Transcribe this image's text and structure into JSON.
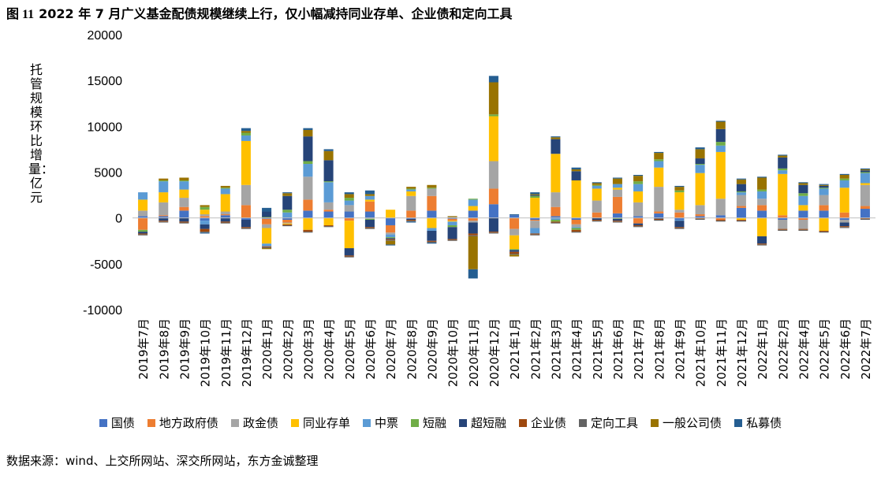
{
  "figure": {
    "title_num": "图 11",
    "title": "2022 年 7 月广义基金配债规模继续上行，仅小幅减持同业存单、企业债和定向工具",
    "source": "数据来源：wind、上交所网站、深交所网站，东方金诚整理"
  },
  "chart_data": {
    "type": "bar",
    "stacked": true,
    "ylabel": "托管规模环比增量：亿元",
    "xlabel": "",
    "ylim": [
      -10000,
      20000
    ],
    "yticks": [
      -10000,
      -5000,
      0,
      5000,
      10000,
      15000,
      20000
    ],
    "grid": false,
    "legend_position": "bottom",
    "categories": [
      "2019年7月",
      "2019年8月",
      "2019年9月",
      "2019年10月",
      "2019年11月",
      "2019年12月",
      "2020年1月",
      "2020年2月",
      "2020年3月",
      "2020年4月",
      "2020年5月",
      "2020年6月",
      "2020年7月",
      "2020年8月",
      "2020年9月",
      "2020年10月",
      "2020年11月",
      "2020年12月",
      "2021年1月",
      "2021年2月",
      "2021年3月",
      "2021年4月",
      "2021年5月",
      "2021年6月",
      "2021年7月",
      "2021年8月",
      "2021年9月",
      "2021年10月",
      "2021年11月",
      "2021年12月",
      "2022年1月",
      "2022年2月",
      "2022年4月",
      "2022年5月",
      "2022年6月",
      "2022年7月"
    ],
    "series": [
      {
        "name": "国债",
        "color": "#4472C4",
        "values": [
          200,
          200,
          800,
          -300,
          300,
          -200,
          -100,
          -200,
          800,
          700,
          700,
          700,
          -800,
          -100,
          800,
          -100,
          800,
          1500,
          300,
          -200,
          200,
          -200,
          0,
          500,
          200,
          500,
          -200,
          200,
          300,
          1100,
          800,
          -200,
          800,
          800,
          -200,
          1000
        ]
      },
      {
        "name": "地方政府债",
        "color": "#ED7D31",
        "values": [
          -1300,
          100,
          400,
          200,
          100,
          1400,
          -600,
          -300,
          1200,
          200,
          -300,
          1100,
          -800,
          800,
          1600,
          -200,
          -300,
          1700,
          -1200,
          -100,
          1000,
          -500,
          600,
          1800,
          -600,
          200,
          600,
          200,
          -200,
          200,
          600,
          300,
          -200,
          600,
          600,
          300
        ]
      },
      {
        "name": "政金债",
        "color": "#A5A5A5",
        "values": [
          600,
          1400,
          1000,
          200,
          300,
          2200,
          -400,
          -100,
          2500,
          800,
          700,
          -100,
          -200,
          1600,
          800,
          100,
          -200,
          3000,
          -700,
          -800,
          1600,
          -300,
          1300,
          800,
          1500,
          2700,
          300,
          1000,
          1800,
          1200,
          700,
          -1000,
          -1000,
          1100,
          -300,
          2300
        ]
      },
      {
        "name": "同业存单",
        "color": "#FFC000",
        "values": [
          1200,
          1100,
          900,
          500,
          1900,
          4800,
          -1700,
          -100,
          -1300,
          -800,
          -3000,
          200,
          900,
          500,
          -1100,
          -100,
          500,
          4900,
          -1500,
          2200,
          4200,
          4100,
          1300,
          200,
          1200,
          2100,
          1900,
          3500,
          5100,
          -200,
          -2000,
          4500,
          600,
          -1400,
          2700,
          200
        ]
      },
      {
        "name": "中票",
        "color": "#5B9BD5",
        "values": [
          800,
          1200,
          900,
          -400,
          600,
          600,
          -300,
          600,
          1400,
          2200,
          500,
          400,
          -300,
          200,
          -300,
          -400,
          700,
          0,
          0,
          -600,
          -200,
          -100,
          300,
          400,
          800,
          700,
          -100,
          900,
          700,
          300,
          800,
          400,
          1000,
          700,
          800,
          1100
        ]
      },
      {
        "name": "短融",
        "color": "#70AD47",
        "values": [
          -200,
          100,
          100,
          300,
          100,
          300,
          100,
          300,
          300,
          100,
          300,
          -100,
          -100,
          100,
          100,
          -200,
          100,
          200,
          -100,
          200,
          -200,
          -200,
          100,
          -100,
          300,
          200,
          200,
          100,
          400,
          100,
          200,
          200,
          300,
          100,
          200,
          100
        ]
      },
      {
        "name": "超短融",
        "color": "#264478",
        "values": [
          -200,
          -300,
          -400,
          -500,
          -400,
          -800,
          600,
          1500,
          2700,
          2300,
          -800,
          -800,
          -100,
          -100,
          -1100,
          -1300,
          -1200,
          -1500,
          -200,
          100,
          1600,
          1000,
          -200,
          -200,
          -200,
          -100,
          -700,
          600,
          1400,
          800,
          -800,
          1200,
          900,
          200,
          -400,
          200
        ]
      },
      {
        "name": "企业债",
        "color": "#9E480E",
        "values": [
          -100,
          -100,
          -100,
          -300,
          -100,
          -100,
          -100,
          -100,
          -200,
          -100,
          -100,
          -100,
          -100,
          -100,
          -100,
          -100,
          -200,
          -100,
          -200,
          -100,
          -100,
          -200,
          -100,
          -100,
          -100,
          -100,
          -100,
          -100,
          -100,
          -100,
          -100,
          -100,
          -100,
          -100,
          -100,
          -100
        ]
      },
      {
        "name": "定向工具",
        "color": "#636363",
        "values": [
          -100,
          -100,
          -100,
          -100,
          -100,
          -100,
          -100,
          -100,
          -100,
          -100,
          -100,
          -100,
          -100,
          -100,
          -100,
          -100,
          -100,
          -100,
          -100,
          -100,
          -100,
          -100,
          -100,
          -100,
          -100,
          -100,
          -100,
          -100,
          -100,
          -100,
          -100,
          -100,
          -100,
          -100,
          -100,
          -100
        ]
      },
      {
        "name": "一般公司债",
        "color": "#997300",
        "values": [
          0,
          200,
          300,
          200,
          200,
          200,
          -100,
          300,
          700,
          1000,
          400,
          200,
          -400,
          200,
          300,
          100,
          -3600,
          3500,
          -200,
          100,
          200,
          200,
          200,
          600,
          600,
          700,
          400,
          1000,
          800,
          500,
          1300,
          200,
          200,
          100,
          400,
          100
        ]
      },
      {
        "name": "私募债",
        "color": "#255E91",
        "values": [
          0,
          0,
          0,
          -100,
          0,
          300,
          400,
          100,
          200,
          200,
          200,
          400,
          -100,
          -100,
          -100,
          0,
          -1000,
          700,
          100,
          200,
          100,
          200,
          100,
          100,
          100,
          100,
          100,
          200,
          100,
          100,
          100,
          100,
          100,
          100,
          100,
          100
        ]
      }
    ]
  }
}
